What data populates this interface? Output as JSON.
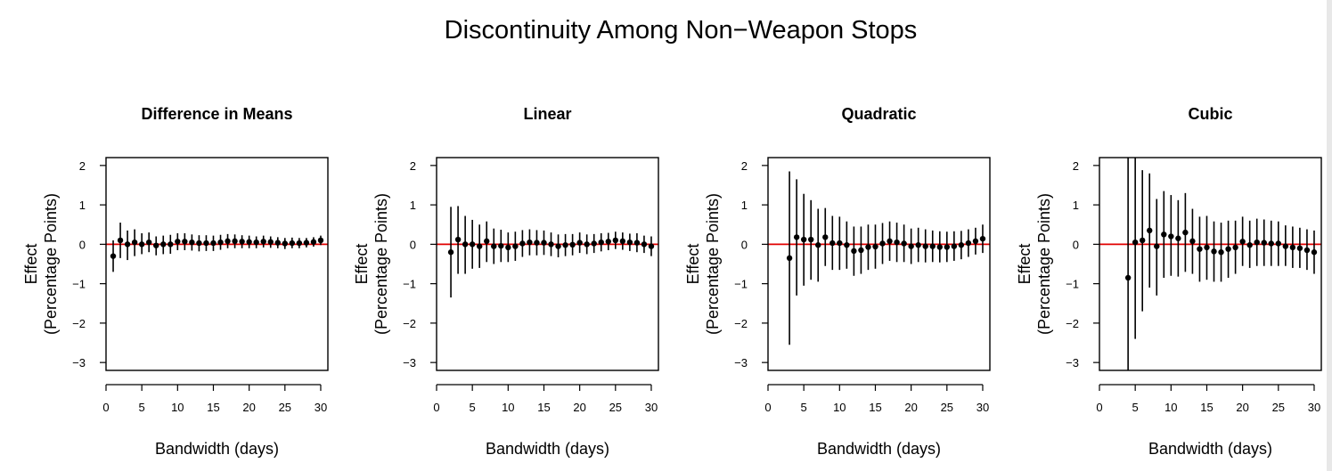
{
  "title": "Discontinuity Among Non−Weapon Stops",
  "chart_data": [
    {
      "type": "scatter",
      "title": "Difference in Means",
      "xlabel": "Bandwidth (days)",
      "ylabel": [
        "Effect",
        "(Percentage Points)"
      ],
      "xlim": [
        0,
        31
      ],
      "ylim": [
        -3.2,
        2.2
      ],
      "xticks": [
        0,
        5,
        10,
        15,
        20,
        25,
        30
      ],
      "yticks": [
        -3,
        -2,
        -1,
        0,
        1,
        2
      ],
      "reference_line": {
        "y": 0,
        "color": "#e00000"
      },
      "x": [
        1,
        2,
        3,
        4,
        5,
        6,
        7,
        8,
        9,
        10,
        11,
        12,
        13,
        14,
        15,
        16,
        17,
        18,
        19,
        20,
        21,
        22,
        23,
        24,
        25,
        26,
        27,
        28,
        29,
        30
      ],
      "y": [
        -0.3,
        0.1,
        0.0,
        0.05,
        0.0,
        0.05,
        -0.03,
        0.0,
        0.0,
        0.07,
        0.07,
        0.05,
        0.03,
        0.03,
        0.03,
        0.05,
        0.08,
        0.08,
        0.07,
        0.06,
        0.05,
        0.07,
        0.06,
        0.04,
        0.02,
        0.03,
        0.03,
        0.04,
        0.06,
        0.1
      ],
      "lower": [
        -0.7,
        -0.35,
        -0.4,
        -0.3,
        -0.25,
        -0.2,
        -0.28,
        -0.25,
        -0.24,
        -0.15,
        -0.15,
        -0.16,
        -0.18,
        -0.17,
        -0.17,
        -0.14,
        -0.1,
        -0.1,
        -0.1,
        -0.1,
        -0.1,
        -0.08,
        -0.09,
        -0.1,
        -0.12,
        -0.1,
        -0.1,
        -0.08,
        -0.06,
        -0.02
      ],
      "upper": [
        0.1,
        0.55,
        0.35,
        0.38,
        0.28,
        0.3,
        0.2,
        0.22,
        0.24,
        0.28,
        0.28,
        0.25,
        0.23,
        0.23,
        0.22,
        0.24,
        0.26,
        0.25,
        0.23,
        0.22,
        0.2,
        0.22,
        0.2,
        0.18,
        0.16,
        0.17,
        0.16,
        0.16,
        0.18,
        0.22
      ]
    },
    {
      "type": "scatter",
      "title": "Linear",
      "xlabel": "Bandwidth (days)",
      "ylabel": [
        "Effect",
        "(Percentage Points)"
      ],
      "xlim": [
        0,
        31
      ],
      "ylim": [
        -3.2,
        2.2
      ],
      "xticks": [
        0,
        5,
        10,
        15,
        20,
        25,
        30
      ],
      "yticks": [
        -3,
        -2,
        -1,
        0,
        1,
        2
      ],
      "reference_line": {
        "y": 0,
        "color": "#e00000"
      },
      "x": [
        2,
        3,
        4,
        5,
        6,
        7,
        8,
        9,
        10,
        11,
        12,
        13,
        14,
        15,
        16,
        17,
        18,
        19,
        20,
        21,
        22,
        23,
        24,
        25,
        26,
        27,
        28,
        29,
        30
      ],
      "y": [
        -0.2,
        0.12,
        0.0,
        0.0,
        -0.05,
        0.08,
        -0.05,
        -0.04,
        -0.08,
        -0.05,
        0.02,
        0.05,
        0.04,
        0.04,
        0.0,
        -0.05,
        -0.02,
        -0.01,
        0.04,
        0.0,
        0.02,
        0.05,
        0.07,
        0.1,
        0.08,
        0.05,
        0.04,
        0.0,
        -0.05
      ],
      "lower": [
        -1.35,
        -0.75,
        -0.75,
        -0.62,
        -0.6,
        -0.45,
        -0.5,
        -0.45,
        -0.45,
        -0.42,
        -0.32,
        -0.28,
        -0.28,
        -0.27,
        -0.3,
        -0.33,
        -0.3,
        -0.28,
        -0.22,
        -0.25,
        -0.22,
        -0.18,
        -0.15,
        -0.12,
        -0.14,
        -0.17,
        -0.2,
        -0.22,
        -0.3
      ],
      "upper": [
        0.95,
        0.97,
        0.72,
        0.62,
        0.5,
        0.58,
        0.4,
        0.37,
        0.3,
        0.32,
        0.36,
        0.38,
        0.36,
        0.35,
        0.3,
        0.25,
        0.26,
        0.26,
        0.3,
        0.25,
        0.26,
        0.28,
        0.29,
        0.32,
        0.3,
        0.27,
        0.28,
        0.22,
        0.2
      ]
    },
    {
      "type": "scatter",
      "title": "Quadratic",
      "xlabel": "Bandwidth (days)",
      "ylabel": [
        "Effect",
        "(Percentage Points)"
      ],
      "xlim": [
        0,
        31
      ],
      "ylim": [
        -3.2,
        2.2
      ],
      "xticks": [
        0,
        5,
        10,
        15,
        20,
        25,
        30
      ],
      "yticks": [
        -3,
        -2,
        -1,
        0,
        1,
        2
      ],
      "reference_line": {
        "y": 0,
        "color": "#e00000"
      },
      "x": [
        3,
        4,
        5,
        6,
        7,
        8,
        9,
        10,
        11,
        12,
        13,
        14,
        15,
        16,
        17,
        18,
        19,
        20,
        21,
        22,
        23,
        24,
        25,
        26,
        27,
        28,
        29,
        30
      ],
      "y": [
        -0.35,
        0.18,
        0.12,
        0.12,
        -0.02,
        0.18,
        0.03,
        0.03,
        -0.02,
        -0.17,
        -0.15,
        -0.07,
        -0.06,
        0.02,
        0.08,
        0.05,
        0.02,
        -0.05,
        -0.02,
        -0.05,
        -0.05,
        -0.07,
        -0.07,
        -0.05,
        -0.02,
        0.03,
        0.08,
        0.14
      ],
      "lower": [
        -2.55,
        -1.3,
        -1.05,
        -0.9,
        -0.95,
        -0.55,
        -0.65,
        -0.65,
        -0.62,
        -0.8,
        -0.75,
        -0.65,
        -0.62,
        -0.5,
        -0.42,
        -0.45,
        -0.45,
        -0.5,
        -0.45,
        -0.46,
        -0.45,
        -0.46,
        -0.45,
        -0.42,
        -0.38,
        -0.32,
        -0.26,
        -0.22
      ],
      "upper": [
        1.85,
        1.65,
        1.28,
        1.12,
        0.9,
        0.92,
        0.72,
        0.7,
        0.58,
        0.45,
        0.45,
        0.5,
        0.5,
        0.54,
        0.58,
        0.55,
        0.5,
        0.4,
        0.42,
        0.38,
        0.35,
        0.33,
        0.32,
        0.33,
        0.34,
        0.38,
        0.42,
        0.5
      ]
    },
    {
      "type": "scatter",
      "title": "Cubic",
      "xlabel": "Bandwidth (days)",
      "ylabel": [
        "Effect",
        "(Percentage Points)"
      ],
      "xlim": [
        0,
        31
      ],
      "ylim": [
        -3.2,
        2.2
      ],
      "xticks": [
        0,
        5,
        10,
        15,
        20,
        25,
        30
      ],
      "yticks": [
        -3,
        -2,
        -1,
        0,
        1,
        2
      ],
      "reference_line": {
        "y": 0,
        "color": "#e00000"
      },
      "x": [
        4,
        5,
        6,
        7,
        8,
        9,
        10,
        11,
        12,
        13,
        14,
        15,
        16,
        17,
        18,
        19,
        20,
        21,
        22,
        23,
        24,
        25,
        26,
        27,
        28,
        29,
        30
      ],
      "y": [
        -0.85,
        0.05,
        0.1,
        0.35,
        -0.05,
        0.25,
        0.2,
        0.15,
        0.3,
        0.08,
        -0.12,
        -0.08,
        -0.18,
        -0.2,
        -0.12,
        -0.08,
        0.07,
        -0.02,
        0.05,
        0.04,
        0.02,
        0.02,
        -0.05,
        -0.08,
        -0.1,
        -0.15,
        -0.2
      ],
      "lower": [
        -6.0,
        -2.4,
        -1.7,
        -1.1,
        -1.3,
        -0.85,
        -0.8,
        -0.82,
        -0.7,
        -0.75,
        -0.95,
        -0.9,
        -0.95,
        -0.95,
        -0.85,
        -0.75,
        -0.55,
        -0.6,
        -0.55,
        -0.55,
        -0.55,
        -0.55,
        -0.55,
        -0.6,
        -0.6,
        -0.65,
        -0.75
      ],
      "upper": [
        6.0,
        2.5,
        1.88,
        1.8,
        1.15,
        1.35,
        1.25,
        1.12,
        1.3,
        0.9,
        0.7,
        0.72,
        0.58,
        0.55,
        0.6,
        0.6,
        0.7,
        0.6,
        0.65,
        0.63,
        0.6,
        0.58,
        0.48,
        0.45,
        0.42,
        0.38,
        0.35
      ]
    }
  ]
}
